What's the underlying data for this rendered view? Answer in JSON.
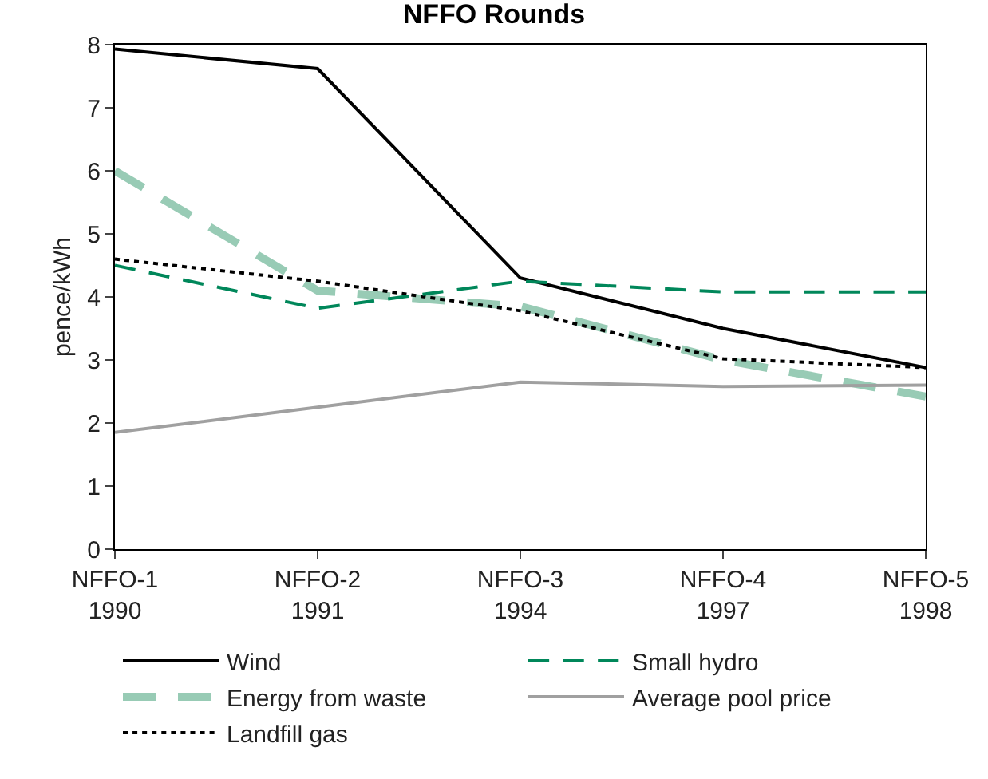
{
  "chart_data": {
    "type": "line",
    "title": "NFFO Rounds",
    "ylabel": "pence/kWh",
    "categories": [
      "NFFO-1\n1990",
      "NFFO-2\n1991",
      "NFFO-3\n1994",
      "NFFO-4\n1997",
      "NFFO-5\n1998"
    ],
    "series": [
      {
        "name": "Wind",
        "color": "#000000",
        "line_style": "solid",
        "values": [
          7.93,
          7.62,
          4.3,
          3.5,
          2.88
        ]
      },
      {
        "name": "Energy from waste",
        "color": "#98cbb5",
        "line_style": "dashed",
        "values": [
          6.0,
          4.1,
          3.85,
          3.0,
          2.42
        ]
      },
      {
        "name": "Landfill gas",
        "color": "#000000",
        "line_style": "dotted",
        "values": [
          4.6,
          4.25,
          3.78,
          3.02,
          2.88
        ]
      },
      {
        "name": "Small hydro",
        "color": "#00875a",
        "line_style": "dashed",
        "values": [
          4.5,
          3.82,
          4.25,
          4.08,
          4.08
        ]
      },
      {
        "name": "Average pool price",
        "color": "#a0a0a0",
        "line_style": "solid",
        "values": [
          1.85,
          2.25,
          2.65,
          2.58,
          2.6
        ]
      }
    ],
    "ylim": [
      0,
      8
    ],
    "yticks": [
      0,
      1,
      2,
      3,
      4,
      5,
      6,
      7,
      8
    ],
    "legend": "bottom",
    "marker": "none"
  }
}
